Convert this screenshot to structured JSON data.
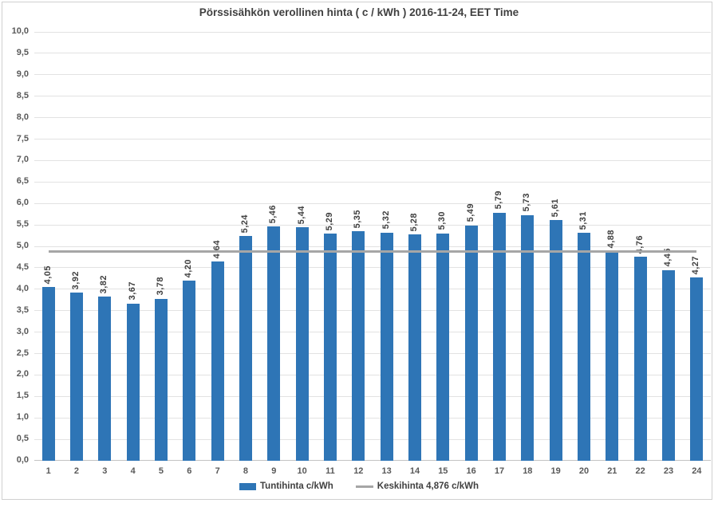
{
  "chart_data": {
    "type": "bar",
    "title": "Pörssisähkön verollinen hinta ( c / kWh ) 2016-11-24, EET Time",
    "categories": [
      "1",
      "2",
      "3",
      "4",
      "5",
      "6",
      "7",
      "8",
      "9",
      "10",
      "11",
      "12",
      "13",
      "14",
      "15",
      "16",
      "17",
      "18",
      "19",
      "20",
      "21",
      "22",
      "23",
      "24"
    ],
    "series": [
      {
        "name": "Tuntihinta c/kWh",
        "type": "bar",
        "color": "#2E75B6",
        "values": [
          4.05,
          3.92,
          3.82,
          3.67,
          3.78,
          4.2,
          4.64,
          5.24,
          5.46,
          5.44,
          5.29,
          5.35,
          5.32,
          5.28,
          5.3,
          5.49,
          5.79,
          5.73,
          5.61,
          5.31,
          4.88,
          4.76,
          4.45,
          4.27
        ]
      },
      {
        "name": "Keskihinta 4,876 c/kWh",
        "type": "line",
        "color": "#A6A6A6",
        "value": 4.876
      }
    ],
    "data_labels": [
      "4,05",
      "3,92",
      "3,82",
      "3,67",
      "3,78",
      "4,20",
      "4,64",
      "5,24",
      "5,46",
      "5,44",
      "5,29",
      "5,35",
      "5,32",
      "5,28",
      "5,30",
      "5,49",
      "5,79",
      "5,73",
      "5,61",
      "5,31",
      "4,88",
      "4,76",
      "4,45",
      "4,27"
    ],
    "xlabel": "",
    "ylabel": "",
    "ylim": [
      0,
      10
    ],
    "ytick_step": 0.5,
    "ytick_labels": [
      "0,0",
      "0,5",
      "1,0",
      "1,5",
      "2,0",
      "2,5",
      "3,0",
      "3,5",
      "4,0",
      "4,5",
      "5,0",
      "5,5",
      "6,0",
      "6,5",
      "7,0",
      "7,5",
      "8,0",
      "8,5",
      "9,0",
      "9,5",
      "10,0"
    ],
    "grid": "horizontal",
    "legend_position": "bottom",
    "legend": [
      {
        "label": "Tuntihinta c/kWh",
        "swatch": "bar",
        "color": "#2E75B6"
      },
      {
        "label": "Keskihinta 4,876 c/kWh",
        "swatch": "line",
        "color": "#A6A6A6"
      }
    ],
    "average_value": 4.876
  }
}
